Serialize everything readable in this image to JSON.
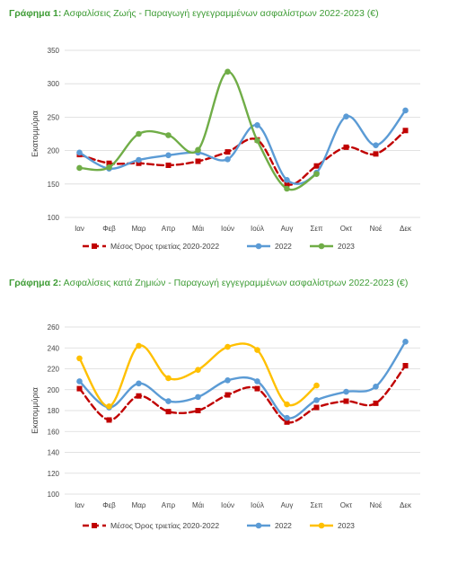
{
  "chart_data": [
    {
      "type": "line",
      "title_prefix": "Γράφημα 1:",
      "title": "Ασφαλίσεις Ζωής - Παραγωγή εγγεγραμμένων ασφαλίστρων 2022-2023 (€)",
      "ylabel": "Εκατομμύρια",
      "xlabel": "",
      "ylim": [
        100,
        350
      ],
      "yticks": [
        100,
        150,
        200,
        250,
        300,
        350
      ],
      "grid": true,
      "legend": "bottom",
      "categories": [
        "Ιαν",
        "Φεβ",
        "Μαρ",
        "Απρ",
        "Μάι",
        "Ιούν",
        "Ιούλ",
        "Αυγ",
        "Σεπ",
        "Οκτ",
        "Νοέ",
        "Δεκ"
      ],
      "series": [
        {
          "name": "Μέσος Όρος τριετίας 2020-2022",
          "color": "#c00000",
          "style": "dashed",
          "marker": "square",
          "values": [
            194,
            181,
            181,
            178,
            184,
            198,
            216,
            150,
            177,
            205,
            195,
            230
          ]
        },
        {
          "name": "2022",
          "color": "#5b9bd5",
          "style": "solid",
          "marker": "circle",
          "values": [
            197,
            173,
            186,
            193,
            197,
            187,
            238,
            156,
            167,
            251,
            208,
            260
          ]
        },
        {
          "name": "2023",
          "color": "#70ad47",
          "style": "solid",
          "marker": "circle",
          "values": [
            174,
            175,
            225,
            223,
            201,
            318,
            215,
            143,
            165,
            null,
            null,
            null
          ]
        }
      ]
    },
    {
      "type": "line",
      "title_prefix": "Γράφημα 2:",
      "title": "Ασφαλίσεις κατά Ζημιών - Παραγωγή εγγεγραμμένων ασφαλίστρων 2022-2023 (€)",
      "ylabel": "Εκατομμύρια",
      "xlabel": "",
      "ylim": [
        100,
        260
      ],
      "yticks": [
        100,
        120,
        140,
        160,
        180,
        200,
        220,
        240,
        260
      ],
      "grid": true,
      "legend": "bottom",
      "categories": [
        "Ιαν",
        "Φεβ",
        "Μαρ",
        "Απρ",
        "Μάι",
        "Ιούν",
        "Ιούλ",
        "Αυγ",
        "Σεπ",
        "Οκτ",
        "Νοέ",
        "Δεκ"
      ],
      "series": [
        {
          "name": "Μέσος Όρος τριετίας 2020-2022",
          "color": "#c00000",
          "style": "dashed",
          "marker": "square",
          "values": [
            201,
            171,
            194,
            179,
            180,
            195,
            201,
            169,
            183,
            189,
            187,
            223
          ]
        },
        {
          "name": "2022",
          "color": "#5b9bd5",
          "style": "solid",
          "marker": "circle",
          "values": [
            208,
            183,
            206,
            189,
            193,
            209,
            208,
            173,
            190,
            198,
            203,
            246
          ]
        },
        {
          "name": "2023",
          "color": "#ffc000",
          "style": "solid",
          "marker": "circle",
          "values": [
            230,
            184,
            242,
            211,
            219,
            241,
            238,
            186,
            204,
            null,
            null,
            null
          ]
        }
      ]
    }
  ]
}
